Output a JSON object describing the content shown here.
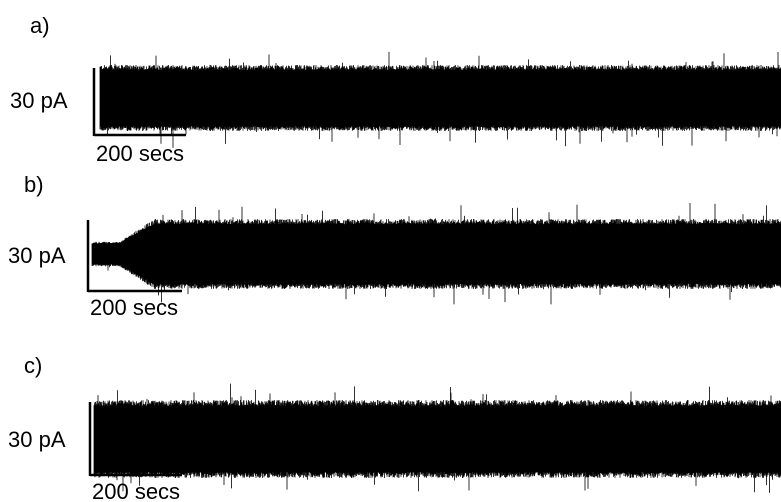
{
  "chart_data": [
    {
      "type": "line",
      "panel_label": "a)",
      "scale_bar": {
        "amplitude": "30 pA",
        "time": "200 secs"
      },
      "series": [
        {
          "kind": "current-trace",
          "envelope": {
            "onset_fraction": 0.0,
            "start_level": 1.0,
            "plateau_level": 1.0,
            "rise_fraction": 0.01
          }
        }
      ]
    },
    {
      "type": "line",
      "panel_label": "b)",
      "scale_bar": {
        "amplitude": "30 pA",
        "time": "200 secs"
      },
      "series": [
        {
          "kind": "current-trace",
          "envelope": {
            "onset_fraction": 0.04,
            "start_level": 0.35,
            "plateau_level": 1.0,
            "rise_fraction": 0.05
          }
        }
      ]
    },
    {
      "type": "line",
      "panel_label": "c)",
      "scale_bar": {
        "amplitude": "30 pA",
        "time": "200 secs"
      },
      "series": [
        {
          "kind": "current-trace",
          "envelope": {
            "onset_fraction": 0.0,
            "start_level": 1.0,
            "plateau_level": 1.0,
            "rise_fraction": 0.03
          }
        }
      ]
    }
  ],
  "colors": {
    "trace": "#000000",
    "scale_bar": "#000000",
    "label": "#000000"
  }
}
